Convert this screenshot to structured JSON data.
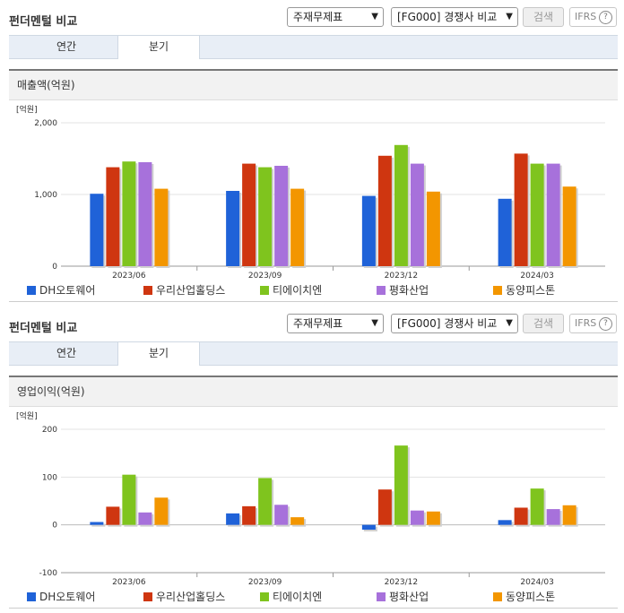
{
  "panels": [
    {
      "title": "펀더멘털 비교",
      "select_statement": "주재무제표",
      "select_peer": "[FG000] 경쟁사 비교",
      "search_label": "검색",
      "ifrs_label": "IFRS",
      "help_glyph": "?",
      "tabs": [
        {
          "label": "연간",
          "active": false
        },
        {
          "label": "분기",
          "active": true
        }
      ],
      "chart_title": "매출액(억원)",
      "chart_data": {
        "type": "bar",
        "unit_label": "[억원]",
        "categories": [
          "2023/06",
          "2023/09",
          "2023/12",
          "2024/03"
        ],
        "ylim": [
          0,
          2000
        ],
        "yticks": [
          0,
          1000,
          2000
        ],
        "ytick_labels": [
          "0",
          "1,000",
          "2,000"
        ],
        "grid": true,
        "legend_position": "bottom",
        "series": [
          {
            "name": "DH오토웨어",
            "color": "#1f62d8",
            "values": [
              1010,
              1050,
              980,
              940
            ]
          },
          {
            "name": "우리산업홀딩스",
            "color": "#cf3610",
            "values": [
              1380,
              1430,
              1540,
              1570
            ]
          },
          {
            "name": "티에이치엔",
            "color": "#7fc41e",
            "values": [
              1460,
              1380,
              1690,
              1430
            ]
          },
          {
            "name": "평화산업",
            "color": "#a771db",
            "values": [
              1450,
              1400,
              1430,
              1430
            ]
          },
          {
            "name": "동양피스톤",
            "color": "#f39600",
            "values": [
              1080,
              1080,
              1040,
              1110
            ]
          }
        ]
      }
    },
    {
      "title": "펀더멘털 비교",
      "select_statement": "주재무제표",
      "select_peer": "[FG000] 경쟁사 비교",
      "search_label": "검색",
      "ifrs_label": "IFRS",
      "help_glyph": "?",
      "tabs": [
        {
          "label": "연간",
          "active": false
        },
        {
          "label": "분기",
          "active": true
        }
      ],
      "chart_title": "영업이익(억원)",
      "chart_data": {
        "type": "bar",
        "unit_label": "[억원]",
        "categories": [
          "2023/06",
          "2023/09",
          "2023/12",
          "2024/03"
        ],
        "ylim": [
          -100,
          200
        ],
        "yticks": [
          -100,
          0,
          100,
          200
        ],
        "ytick_labels": [
          "-100",
          "0",
          "100",
          "200"
        ],
        "grid": true,
        "legend_position": "bottom",
        "series": [
          {
            "name": "DH오토웨어",
            "color": "#1f62d8",
            "values": [
              6,
              24,
              -10,
              10
            ]
          },
          {
            "name": "우리산업홀딩스",
            "color": "#cf3610",
            "values": [
              38,
              39,
              74,
              36
            ]
          },
          {
            "name": "티에이치엔",
            "color": "#7fc41e",
            "values": [
              105,
              98,
              166,
              76
            ]
          },
          {
            "name": "평화산업",
            "color": "#a771db",
            "values": [
              26,
              42,
              30,
              33
            ]
          },
          {
            "name": "동양피스톤",
            "color": "#f39600",
            "values": [
              57,
              16,
              28,
              41
            ]
          }
        ]
      }
    }
  ]
}
